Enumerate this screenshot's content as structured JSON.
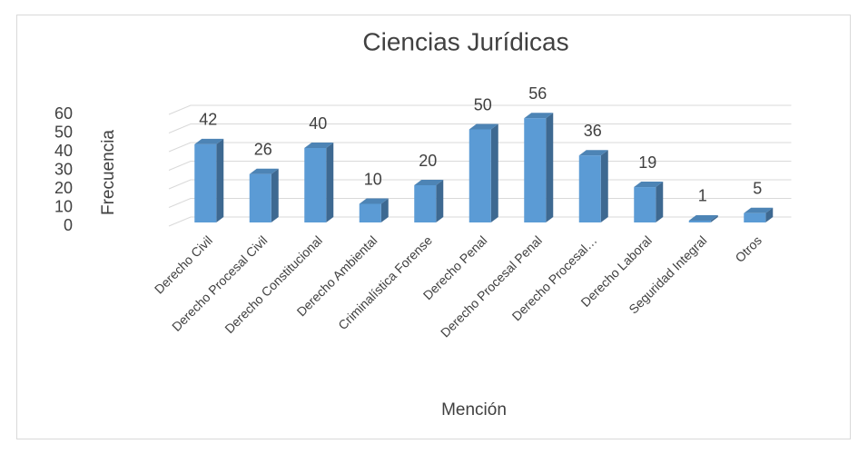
{
  "chart_data": {
    "type": "bar3d",
    "title": "Ciencias Jurídicas",
    "x_label": "Mención",
    "y_label": "Frecuencia",
    "categories": [
      "Derecho Civil",
      "Derecho Procesal Civil",
      "Derecho Constitucional",
      "Derecho Ambiental",
      "Criminalística Forense",
      "Derecho Penal",
      "Derecho Procesal Penal",
      "Derecho Procesal…",
      "Derecho Laboral",
      "Seguridad Integral",
      "Otros"
    ],
    "values": [
      42,
      26,
      40,
      10,
      20,
      50,
      56,
      36,
      19,
      1,
      5
    ],
    "color": "#5b9bd5",
    "ylim": [
      0,
      60
    ],
    "yticks": [
      0,
      10,
      20,
      30,
      40,
      50,
      60
    ],
    "grid": true
  }
}
